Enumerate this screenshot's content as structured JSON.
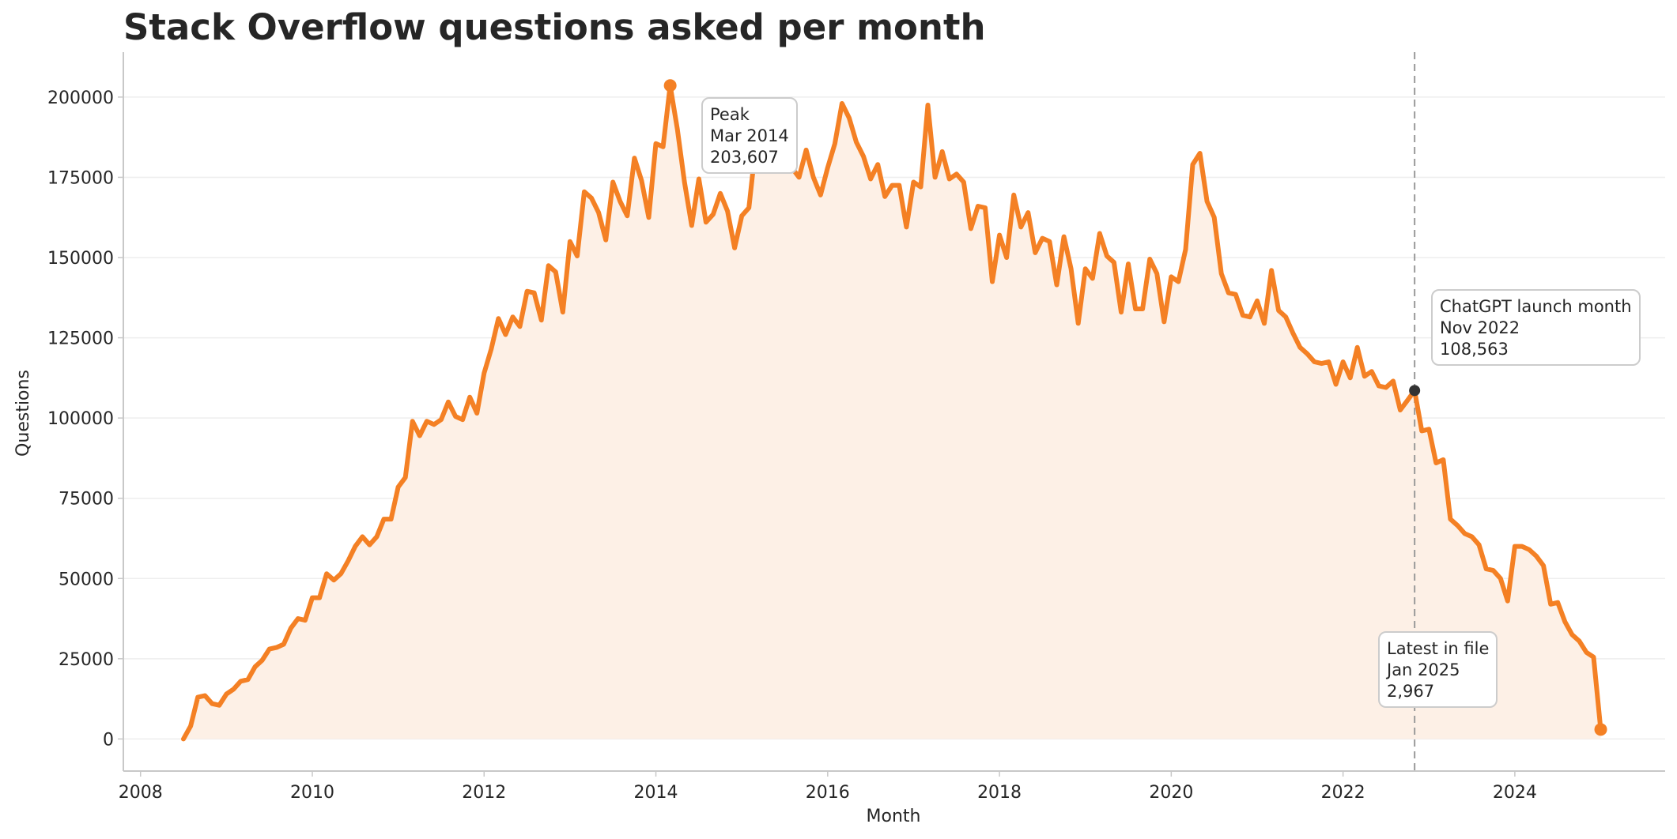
{
  "chart_data": {
    "type": "area",
    "title": "Stack Overflow questions asked per month",
    "xlabel": "Month",
    "ylabel": "Questions",
    "xlim": [
      2007.8,
      2025.75
    ],
    "ylim": [
      -10000,
      214000
    ],
    "x_ticks": [
      2008,
      2010,
      2012,
      2014,
      2016,
      2018,
      2020,
      2022,
      2024
    ],
    "y_ticks": [
      0,
      25000,
      50000,
      75000,
      100000,
      125000,
      150000,
      175000,
      200000
    ],
    "grid": "horizontal",
    "colors": {
      "line": "#f48024",
      "fill": "#fdf0e6",
      "vline": "#9a9a9a",
      "marker_chatgpt": "#333333",
      "axis": "#c8c8c8",
      "grid": "#eeeeee",
      "box_border": "#cccccc"
    },
    "series": [
      {
        "values": [
          [
            "2008-07",
            0
          ],
          [
            "2008-08",
            4000
          ],
          [
            "2008-09",
            13000
          ],
          [
            "2008-10",
            13500
          ],
          [
            "2008-11",
            11000
          ],
          [
            "2008-12",
            10500
          ],
          [
            "2009-01",
            14000
          ],
          [
            "2009-02",
            15500
          ],
          [
            "2009-03",
            18000
          ],
          [
            "2009-04",
            18500
          ],
          [
            "2009-05",
            22500
          ],
          [
            "2009-06",
            24500
          ],
          [
            "2009-07",
            28000
          ],
          [
            "2009-08",
            28500
          ],
          [
            "2009-09",
            29500
          ],
          [
            "2009-10",
            34500
          ],
          [
            "2009-11",
            37500
          ],
          [
            "2009-12",
            37000
          ],
          [
            "2010-01",
            44000
          ],
          [
            "2010-02",
            44000
          ],
          [
            "2010-03",
            51500
          ],
          [
            "2010-04",
            49500
          ],
          [
            "2010-05",
            51500
          ],
          [
            "2010-06",
            55500
          ],
          [
            "2010-07",
            60000
          ],
          [
            "2010-08",
            63000
          ],
          [
            "2010-09",
            60500
          ],
          [
            "2010-10",
            63000
          ],
          [
            "2010-11",
            68500
          ],
          [
            "2010-12",
            68500
          ],
          [
            "2011-01",
            78500
          ],
          [
            "2011-02",
            81500
          ],
          [
            "2011-03",
            99000
          ],
          [
            "2011-04",
            94500
          ],
          [
            "2011-05",
            99000
          ],
          [
            "2011-06",
            98000
          ],
          [
            "2011-07",
            99500
          ],
          [
            "2011-08",
            105000
          ],
          [
            "2011-09",
            100500
          ],
          [
            "2011-10",
            99500
          ],
          [
            "2011-11",
            106500
          ],
          [
            "2011-12",
            101500
          ],
          [
            "2012-01",
            114000
          ],
          [
            "2012-02",
            121500
          ],
          [
            "2012-03",
            131000
          ],
          [
            "2012-04",
            126000
          ],
          [
            "2012-05",
            131500
          ],
          [
            "2012-06",
            128500
          ],
          [
            "2012-07",
            139500
          ],
          [
            "2012-08",
            139000
          ],
          [
            "2012-09",
            130500
          ],
          [
            "2012-10",
            147500
          ],
          [
            "2012-11",
            145500
          ],
          [
            "2012-12",
            133000
          ],
          [
            "2013-01",
            155000
          ],
          [
            "2013-02",
            150500
          ],
          [
            "2013-03",
            170500
          ],
          [
            "2013-04",
            168500
          ],
          [
            "2013-05",
            164000
          ],
          [
            "2013-06",
            155500
          ],
          [
            "2013-07",
            173500
          ],
          [
            "2013-08",
            167500
          ],
          [
            "2013-09",
            163000
          ],
          [
            "2013-10",
            181000
          ],
          [
            "2013-11",
            174000
          ],
          [
            "2013-12",
            162500
          ],
          [
            "2014-01",
            185500
          ],
          [
            "2014-02",
            184500
          ],
          [
            "2014-03",
            203607
          ],
          [
            "2014-04",
            190000
          ],
          [
            "2014-05",
            173500
          ],
          [
            "2014-06",
            160000
          ],
          [
            "2014-07",
            174500
          ],
          [
            "2014-08",
            161000
          ],
          [
            "2014-09",
            163500
          ],
          [
            "2014-10",
            170000
          ],
          [
            "2014-11",
            164500
          ],
          [
            "2014-12",
            153000
          ],
          [
            "2015-01",
            163000
          ],
          [
            "2015-02",
            165500
          ],
          [
            "2015-03",
            186000
          ],
          [
            "2015-04",
            184000
          ],
          [
            "2015-05",
            181000
          ],
          [
            "2015-06",
            182500
          ],
          [
            "2015-07",
            178000
          ],
          [
            "2015-08",
            178000
          ],
          [
            "2015-09",
            175000
          ],
          [
            "2015-10",
            183500
          ],
          [
            "2015-11",
            175000
          ],
          [
            "2015-12",
            169500
          ],
          [
            "2016-01",
            178000
          ],
          [
            "2016-02",
            185500
          ],
          [
            "2016-03",
            198000
          ],
          [
            "2016-04",
            193500
          ],
          [
            "2016-05",
            186000
          ],
          [
            "2016-06",
            181500
          ],
          [
            "2016-07",
            174500
          ],
          [
            "2016-08",
            179000
          ],
          [
            "2016-09",
            169000
          ],
          [
            "2016-10",
            172500
          ],
          [
            "2016-11",
            172500
          ],
          [
            "2016-12",
            159500
          ],
          [
            "2017-01",
            173500
          ],
          [
            "2017-02",
            172000
          ],
          [
            "2017-03",
            197500
          ],
          [
            "2017-04",
            175000
          ],
          [
            "2017-05",
            183000
          ],
          [
            "2017-06",
            174500
          ],
          [
            "2017-07",
            176000
          ],
          [
            "2017-08",
            173500
          ],
          [
            "2017-09",
            159000
          ],
          [
            "2017-10",
            166000
          ],
          [
            "2017-11",
            165500
          ],
          [
            "2017-12",
            142500
          ],
          [
            "2018-01",
            157000
          ],
          [
            "2018-02",
            150000
          ],
          [
            "2018-03",
            169500
          ],
          [
            "2018-04",
            159500
          ],
          [
            "2018-05",
            164000
          ],
          [
            "2018-06",
            151500
          ],
          [
            "2018-07",
            156000
          ],
          [
            "2018-08",
            155000
          ],
          [
            "2018-09",
            141500
          ],
          [
            "2018-10",
            156500
          ],
          [
            "2018-11",
            146500
          ],
          [
            "2018-12",
            129500
          ],
          [
            "2019-01",
            146500
          ],
          [
            "2019-02",
            143500
          ],
          [
            "2019-03",
            157500
          ],
          [
            "2019-04",
            150500
          ],
          [
            "2019-05",
            148500
          ],
          [
            "2019-06",
            133000
          ],
          [
            "2019-07",
            148000
          ],
          [
            "2019-08",
            134000
          ],
          [
            "2019-09",
            134000
          ],
          [
            "2019-10",
            149500
          ],
          [
            "2019-11",
            145000
          ],
          [
            "2019-12",
            130000
          ],
          [
            "2020-01",
            144000
          ],
          [
            "2020-02",
            142500
          ],
          [
            "2020-03",
            152500
          ],
          [
            "2020-04",
            179000
          ],
          [
            "2020-05",
            182500
          ],
          [
            "2020-06",
            167500
          ],
          [
            "2020-07",
            162500
          ],
          [
            "2020-08",
            145000
          ],
          [
            "2020-09",
            139000
          ],
          [
            "2020-10",
            138500
          ],
          [
            "2020-11",
            132000
          ],
          [
            "2020-12",
            131500
          ],
          [
            "2021-01",
            136500
          ],
          [
            "2021-02",
            129500
          ],
          [
            "2021-03",
            146000
          ],
          [
            "2021-04",
            133500
          ],
          [
            "2021-05",
            131500
          ],
          [
            "2021-06",
            126500
          ],
          [
            "2021-07",
            122000
          ],
          [
            "2021-08",
            120000
          ],
          [
            "2021-09",
            117500
          ],
          [
            "2021-10",
            117000
          ],
          [
            "2021-11",
            117500
          ],
          [
            "2021-12",
            110500
          ],
          [
            "2022-01",
            117500
          ],
          [
            "2022-02",
            112500
          ],
          [
            "2022-03",
            122000
          ],
          [
            "2022-04",
            113000
          ],
          [
            "2022-05",
            114500
          ],
          [
            "2022-06",
            110000
          ],
          [
            "2022-07",
            109500
          ],
          [
            "2022-08",
            111500
          ],
          [
            "2022-09",
            102500
          ],
          [
            "2022-10",
            105500
          ],
          [
            "2022-11",
            108563
          ],
          [
            "2022-12",
            96000
          ],
          [
            "2023-01",
            96500
          ],
          [
            "2023-02",
            86000
          ],
          [
            "2023-03",
            87000
          ],
          [
            "2023-04",
            68500
          ],
          [
            "2023-05",
            66500
          ],
          [
            "2023-06",
            64000
          ],
          [
            "2023-07",
            63000
          ],
          [
            "2023-08",
            60500
          ],
          [
            "2023-09",
            53000
          ],
          [
            "2023-10",
            52500
          ],
          [
            "2023-11",
            50000
          ],
          [
            "2023-12",
            43000
          ],
          [
            "2024-01",
            60000
          ],
          [
            "2024-02",
            60000
          ],
          [
            "2024-03",
            59000
          ],
          [
            "2024-04",
            57000
          ],
          [
            "2024-05",
            54000
          ],
          [
            "2024-06",
            42000
          ],
          [
            "2024-07",
            42500
          ],
          [
            "2024-08",
            36500
          ],
          [
            "2024-09",
            32500
          ],
          [
            "2024-10",
            30500
          ],
          [
            "2024-11",
            27000
          ],
          [
            "2024-12",
            25500
          ],
          [
            "2025-01",
            2967
          ]
        ]
      }
    ],
    "vline_x": "2022-11",
    "annotations": [
      {
        "id": "peak",
        "lines": [
          "Peak",
          "Mar 2014",
          "203,607"
        ],
        "point": [
          "2014-03",
          203607
        ],
        "box": "right-of-point"
      },
      {
        "id": "chatgpt",
        "lines": [
          "ChatGPT launch month",
          "Nov 2022",
          "108,563"
        ],
        "point": [
          "2022-11",
          108563
        ],
        "box": "upper-right"
      },
      {
        "id": "latest",
        "lines": [
          "Latest in file",
          "Jan 2025",
          "2,967"
        ],
        "point": [
          "2025-01",
          2967
        ],
        "box": "upper-left"
      }
    ]
  }
}
